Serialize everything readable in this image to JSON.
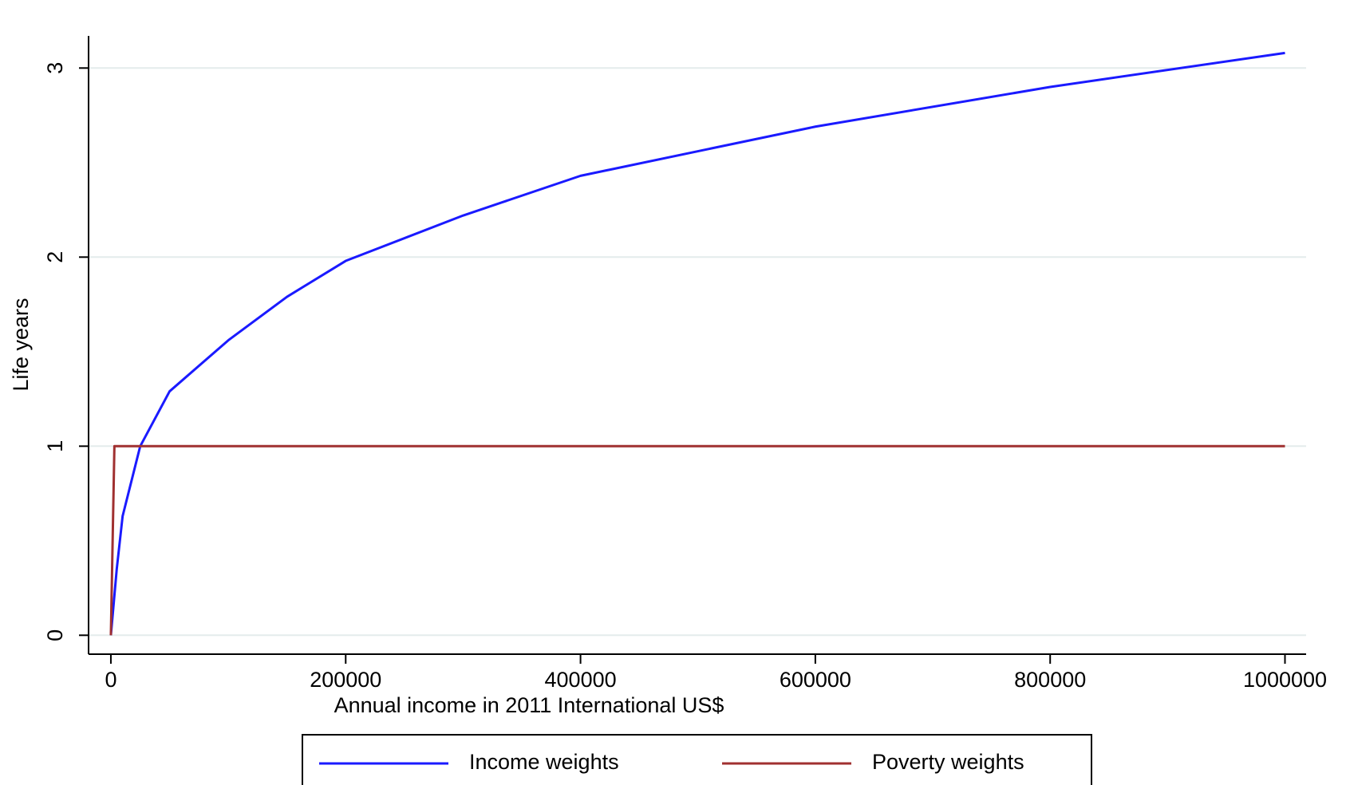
{
  "chart_data": {
    "type": "line",
    "xlabel": "Annual income in 2011 International US$",
    "ylabel": "Life years",
    "series": [
      {
        "name": "Income weights",
        "color": "#1a1aff",
        "x": [
          0,
          5000,
          10000,
          25000,
          50000,
          100000,
          150000,
          200000,
          300000,
          400000,
          600000,
          800000,
          1000000
        ],
        "values": [
          0,
          0.35,
          0.63,
          1.0,
          1.29,
          1.56,
          1.79,
          1.98,
          2.22,
          2.43,
          2.69,
          2.9,
          3.08
        ]
      },
      {
        "name": "Poverty weights",
        "color": "#a03030",
        "x": [
          0,
          3000,
          1000000
        ],
        "values": [
          0,
          1,
          1
        ]
      }
    ],
    "xlim": [
      -19000,
      1018000
    ],
    "xticks": [
      0,
      200000,
      400000,
      600000,
      800000,
      1000000
    ],
    "ylim": [
      -0.1,
      3.17
    ],
    "yticks": [
      0,
      1,
      2,
      3
    ],
    "grid": true,
    "legend": "bottom"
  }
}
